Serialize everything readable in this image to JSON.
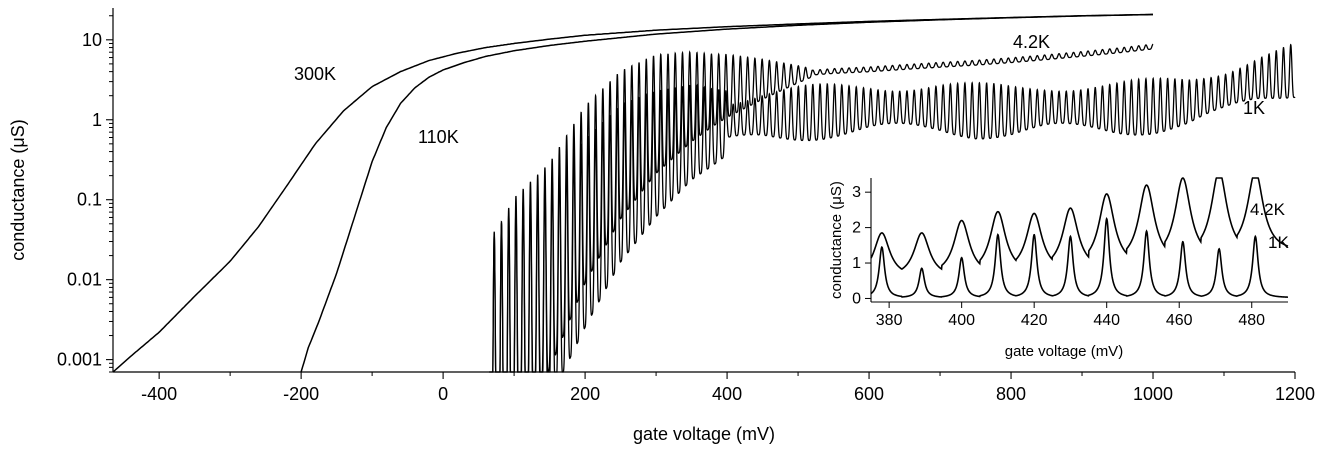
{
  "chart_data": [
    {
      "type": "line",
      "title": "",
      "xlabel": "gate voltage (mV)",
      "ylabel": "conductance (μS)",
      "xlim": [
        -465,
        1200
      ],
      "ylim": [
        0.0007,
        25
      ],
      "yscale": "log",
      "grid": false,
      "xticks": [
        -400,
        -200,
        0,
        200,
        400,
        600,
        800,
        1000,
        1200
      ],
      "xtick_labels": [
        "-400",
        "-200",
        "0",
        "200",
        "400",
        "600",
        "800",
        "1000",
        "1200"
      ],
      "yticks": [
        0.001,
        0.01,
        0.1,
        1,
        10
      ],
      "ytick_labels": [
        "0.001",
        "0.01",
        "0.1",
        "1",
        "10"
      ],
      "series": [
        {
          "name": "300K",
          "x": [
            -465,
            -440,
            -400,
            -350,
            -300,
            -260,
            -220,
            -180,
            -140,
            -100,
            -60,
            -20,
            20,
            60,
            100,
            150,
            200,
            300,
            400,
            500,
            600,
            700,
            800,
            900,
            1000
          ],
          "y": [
            0.0007,
            0.0011,
            0.0022,
            0.0062,
            0.017,
            0.046,
            0.15,
            0.5,
            1.3,
            2.6,
            4.0,
            5.5,
            6.8,
            8.0,
            9.0,
            10.2,
            11.4,
            13.2,
            14.6,
            15.8,
            17.0,
            18.0,
            19.0,
            20.0,
            20.8
          ]
        },
        {
          "name": "110K",
          "x": [
            -200,
            -190,
            -175,
            -150,
            -125,
            -100,
            -80,
            -60,
            -40,
            -20,
            0,
            30,
            60,
            100,
            150,
            200,
            300,
            400,
            500,
            600,
            700,
            800,
            900,
            1000
          ],
          "y": [
            0.0007,
            0.0014,
            0.003,
            0.012,
            0.06,
            0.3,
            0.8,
            1.6,
            2.5,
            3.4,
            4.2,
            5.2,
            6.2,
            7.3,
            8.5,
            9.6,
            11.8,
            13.6,
            15.2,
            16.6,
            17.8,
            18.9,
            19.9,
            20.7
          ]
        },
        {
          "name": "4.2K",
          "x": [
            65,
            100,
            150,
            200,
            250,
            300,
            350,
            400,
            450,
            500,
            550,
            600,
            650,
            700,
            750,
            800,
            850,
            900,
            950,
            1000
          ],
          "y": [
            0.001,
            0.005,
            0.02,
            0.15,
            0.6,
            1.4,
            2.2,
            2.9,
            3.4,
            3.8,
            4.1,
            4.3,
            4.6,
            4.9,
            5.2,
            5.6,
            6.1,
            6.7,
            7.4,
            8.3
          ]
        },
        {
          "name": "1K",
          "x": [
            65,
            100,
            150,
            200,
            250,
            300,
            350,
            380,
            400,
            450,
            500,
            550,
            600,
            650,
            700,
            750,
            800,
            850,
            900,
            950,
            1000,
            1050,
            1100,
            1150,
            1200
          ],
          "y": [
            0.001,
            0.003,
            0.01,
            0.05,
            0.2,
            0.45,
            0.8,
            0.9,
            1.0,
            1.2,
            1.3,
            1.4,
            1.5,
            1.5,
            1.5,
            1.4,
            1.4,
            1.5,
            1.5,
            1.5,
            1.6,
            1.8,
            2.4,
            3.5,
            4.5
          ]
        }
      ],
      "annotations": [
        "300K",
        "110K",
        "4.2K",
        "1K"
      ]
    },
    {
      "type": "line",
      "title": "",
      "xlabel": "gate voltage (mV)",
      "ylabel": "conductance (μS)",
      "xlim": [
        375,
        490
      ],
      "ylim": [
        -0.1,
        3.4
      ],
      "grid": false,
      "xticks": [
        380,
        400,
        420,
        440,
        460,
        480
      ],
      "xtick_labels": [
        "380",
        "400",
        "420",
        "440",
        "460",
        "480"
      ],
      "yticks": [
        0,
        1,
        2,
        3
      ],
      "ytick_labels": [
        "0",
        "1",
        "2",
        "3"
      ],
      "series": [
        {
          "name": "4.2K",
          "peaks_x": [
            378,
            389,
            400,
            410,
            420,
            430,
            440,
            451,
            461,
            471,
            481
          ],
          "peaks_y": [
            1.85,
            1.85,
            2.2,
            2.45,
            2.4,
            2.55,
            2.95,
            3.2,
            3.4,
            3.6,
            3.6
          ],
          "valleys_y": [
            0.6,
            0.6,
            0.65,
            0.7,
            0.75,
            0.8,
            0.9,
            1.0,
            1.1,
            1.2,
            1.3
          ]
        },
        {
          "name": "1K",
          "peaks_x": [
            378,
            389,
            400,
            410,
            420,
            430,
            440,
            451,
            461,
            471,
            481
          ],
          "peaks_y": [
            1.45,
            0.85,
            1.15,
            1.8,
            1.8,
            1.75,
            2.25,
            1.9,
            1.6,
            1.4,
            1.75
          ],
          "valleys_y": [
            0.02,
            0.02,
            0.02,
            0.02,
            0.02,
            0.02,
            0.02,
            0.02,
            0.02,
            0.02,
            0.02
          ]
        }
      ],
      "annotations": [
        "4.2K",
        "1K"
      ]
    }
  ]
}
